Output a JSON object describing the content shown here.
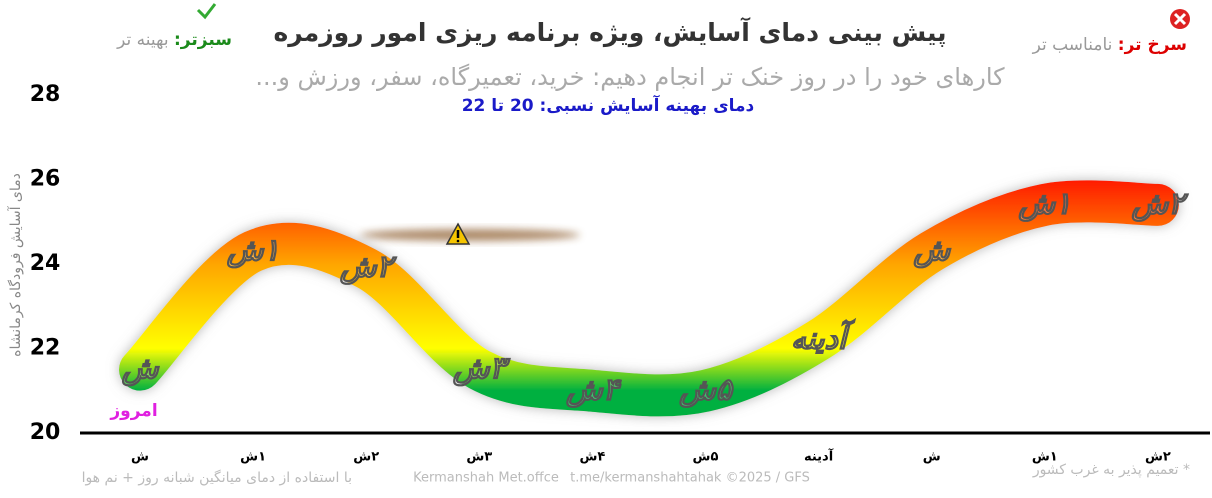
{
  "chart_data": {
    "type": "band-line",
    "title": "پیش بینی دمای آسایش، ویژه برنامه ریزی امور روزمره",
    "subtitle": "کارهای خود را در روز خنک تر انجام دهیم: خرید، تعمیرگاه، سفر، ورزش و...",
    "comfort_note": "دمای بهینه آسایش نسبی: 20 تا 22",
    "legend": {
      "worse_label": "سرخ تر:",
      "worse_text": "نامناسب تر",
      "better_label": "سبزتر:",
      "better_text": "بهینه تر"
    },
    "y_label": "دمای آسایش فرودگاه کرمانشاه",
    "today_label": "امروز",
    "categories": [
      "ش",
      "۱ش",
      "۲ش",
      "۳ش",
      "۴ش",
      "۵ش",
      "آدینه",
      "ش",
      "۱ش",
      "۲ش"
    ],
    "values": [
      21.5,
      24.3,
      23.9,
      21.5,
      21.0,
      21.0,
      22.2,
      24.3,
      25.4,
      25.4
    ],
    "ylim": [
      20,
      28
    ],
    "yticks": [
      20,
      22,
      24,
      26,
      28
    ],
    "gradient": [
      {
        "at": 26,
        "color": "#ff1a00"
      },
      {
        "at": 24,
        "color": "#ffa500"
      },
      {
        "at": 22,
        "color": "#ffff00"
      },
      {
        "at": 21,
        "color": "#00b040"
      }
    ],
    "footer": {
      "method": "با استفاده از دمای میانگین شبانه روز + نم هوا",
      "office": "Kermanshah Met.offce",
      "source": "t.me/kermanshahtahak ©2025 / GFS",
      "note": "* تعمیم پذیر به غرب کشور"
    }
  }
}
